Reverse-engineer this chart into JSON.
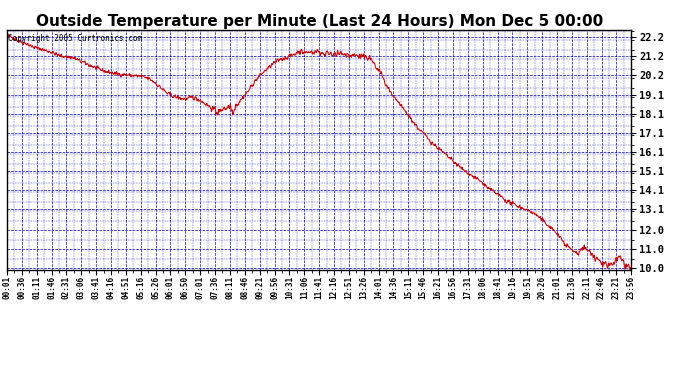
{
  "title": "Outside Temperature per Minute (Last 24 Hours) Mon Dec 5 00:00",
  "copyright": "Copyright 2005 Curtronics.com",
  "ylim": [
    9.9,
    22.55
  ],
  "yticks": [
    10.0,
    11.0,
    12.0,
    13.1,
    14.1,
    15.1,
    16.1,
    17.1,
    18.1,
    19.1,
    20.2,
    21.2,
    22.2
  ],
  "ytick_labels": [
    "10.0",
    "11.0",
    "12.0",
    "13.1",
    "14.1",
    "15.1",
    "16.1",
    "17.1",
    "18.1",
    "19.1",
    "20.2",
    "21.2",
    "22.2"
  ],
  "line_color": "#cc0000",
  "background_color": "#ffffff",
  "grid_color": "#0000bb",
  "title_fontsize": 11,
  "x_tick_labels": [
    "00:01",
    "00:36",
    "01:11",
    "01:46",
    "02:31",
    "03:06",
    "03:41",
    "04:16",
    "04:51",
    "05:16",
    "05:26",
    "06:01",
    "06:50",
    "07:01",
    "07:36",
    "08:11",
    "08:46",
    "09:21",
    "09:56",
    "10:31",
    "11:06",
    "11:41",
    "12:16",
    "12:51",
    "13:26",
    "14:01",
    "14:36",
    "15:11",
    "15:46",
    "16:21",
    "16:56",
    "17:31",
    "18:06",
    "18:41",
    "19:16",
    "19:51",
    "20:26",
    "21:01",
    "21:36",
    "22:11",
    "22:46",
    "23:21",
    "23:56"
  ],
  "n_points": 1440,
  "seed": 42,
  "keypoints": [
    [
      0,
      22.25
    ],
    [
      5,
      22.22
    ],
    [
      15,
      22.15
    ],
    [
      25,
      22.0
    ],
    [
      35,
      21.9
    ],
    [
      45,
      21.85
    ],
    [
      55,
      21.7
    ],
    [
      70,
      21.6
    ],
    [
      85,
      21.5
    ],
    [
      100,
      21.4
    ],
    [
      120,
      21.2
    ],
    [
      135,
      21.15
    ],
    [
      150,
      21.1
    ],
    [
      170,
      20.9
    ],
    [
      190,
      20.7
    ],
    [
      210,
      20.5
    ],
    [
      230,
      20.35
    ],
    [
      250,
      20.25
    ],
    [
      270,
      20.2
    ],
    [
      290,
      20.15
    ],
    [
      310,
      20.1
    ],
    [
      326,
      20.0
    ],
    [
      340,
      19.8
    ],
    [
      355,
      19.5
    ],
    [
      370,
      19.2
    ],
    [
      385,
      19.05
    ],
    [
      400,
      18.95
    ],
    [
      415,
      18.9
    ],
    [
      425,
      19.0
    ],
    [
      435,
      18.95
    ],
    [
      445,
      18.85
    ],
    [
      455,
      18.7
    ],
    [
      465,
      18.55
    ],
    [
      470,
      18.45
    ],
    [
      475,
      18.35
    ],
    [
      480,
      18.3
    ],
    [
      485,
      18.2
    ],
    [
      490,
      18.25
    ],
    [
      495,
      18.3
    ],
    [
      500,
      18.35
    ],
    [
      505,
      18.4
    ],
    [
      510,
      18.5
    ],
    [
      515,
      18.6
    ],
    [
      518,
      18.3
    ],
    [
      521,
      18.15
    ],
    [
      524,
      18.35
    ],
    [
      527,
      18.5
    ],
    [
      530,
      18.6
    ],
    [
      540,
      18.9
    ],
    [
      555,
      19.3
    ],
    [
      570,
      19.8
    ],
    [
      585,
      20.2
    ],
    [
      600,
      20.5
    ],
    [
      615,
      20.8
    ],
    [
      630,
      21.0
    ],
    [
      645,
      21.1
    ],
    [
      655,
      21.2
    ],
    [
      660,
      21.25
    ],
    [
      665,
      21.3
    ],
    [
      670,
      21.35
    ],
    [
      680,
      21.4
    ],
    [
      690,
      21.35
    ],
    [
      700,
      21.4
    ],
    [
      710,
      21.38
    ],
    [
      720,
      21.35
    ],
    [
      730,
      21.3
    ],
    [
      740,
      21.32
    ],
    [
      750,
      21.3
    ],
    [
      760,
      21.28
    ],
    [
      770,
      21.3
    ],
    [
      780,
      21.25
    ],
    [
      790,
      21.2
    ],
    [
      800,
      21.25
    ],
    [
      810,
      21.2
    ],
    [
      820,
      21.15
    ],
    [
      830,
      21.1
    ],
    [
      840,
      21.0
    ],
    [
      845,
      20.8
    ],
    [
      850,
      20.6
    ],
    [
      855,
      20.4
    ],
    [
      858,
      20.5
    ],
    [
      861,
      20.3
    ],
    [
      864,
      20.2
    ],
    [
      867,
      20.0
    ],
    [
      870,
      19.8
    ],
    [
      875,
      19.6
    ],
    [
      880,
      19.4
    ],
    [
      885,
      19.2
    ],
    [
      890,
      19.0
    ],
    [
      900,
      18.8
    ],
    [
      910,
      18.5
    ],
    [
      920,
      18.2
    ],
    [
      930,
      17.9
    ],
    [
      940,
      17.6
    ],
    [
      950,
      17.3
    ],
    [
      960,
      17.1
    ],
    [
      970,
      16.85
    ],
    [
      980,
      16.6
    ],
    [
      990,
      16.4
    ],
    [
      1000,
      16.2
    ],
    [
      1010,
      16.0
    ],
    [
      1020,
      15.8
    ],
    [
      1030,
      15.6
    ],
    [
      1040,
      15.4
    ],
    [
      1050,
      15.2
    ],
    [
      1060,
      15.05
    ],
    [
      1070,
      14.9
    ],
    [
      1080,
      14.75
    ],
    [
      1090,
      14.6
    ],
    [
      1095,
      14.5
    ],
    [
      1100,
      14.4
    ],
    [
      1110,
      14.2
    ],
    [
      1120,
      14.05
    ],
    [
      1130,
      13.9
    ],
    [
      1140,
      13.75
    ],
    [
      1145,
      13.65
    ],
    [
      1150,
      13.55
    ],
    [
      1160,
      13.45
    ],
    [
      1170,
      13.35
    ],
    [
      1180,
      13.25
    ],
    [
      1190,
      13.15
    ],
    [
      1200,
      13.05
    ],
    [
      1210,
      12.95
    ],
    [
      1220,
      12.8
    ],
    [
      1230,
      12.6
    ],
    [
      1240,
      12.4
    ],
    [
      1250,
      12.2
    ],
    [
      1260,
      12.0
    ],
    [
      1265,
      11.9
    ],
    [
      1270,
      11.75
    ],
    [
      1275,
      11.6
    ],
    [
      1280,
      11.45
    ],
    [
      1285,
      11.3
    ],
    [
      1290,
      11.2
    ],
    [
      1295,
      11.1
    ],
    [
      1300,
      11.0
    ],
    [
      1305,
      10.9
    ],
    [
      1310,
      10.8
    ],
    [
      1315,
      10.75
    ],
    [
      1320,
      10.85
    ],
    [
      1325,
      11.0
    ],
    [
      1330,
      11.1
    ],
    [
      1335,
      11.0
    ],
    [
      1340,
      10.9
    ],
    [
      1345,
      10.8
    ],
    [
      1350,
      10.7
    ],
    [
      1355,
      10.6
    ],
    [
      1360,
      10.5
    ],
    [
      1365,
      10.4
    ],
    [
      1370,
      10.3
    ],
    [
      1375,
      10.2
    ],
    [
      1380,
      10.15
    ],
    [
      1385,
      10.05
    ],
    [
      1390,
      10.15
    ],
    [
      1395,
      10.25
    ],
    [
      1400,
      10.35
    ],
    [
      1405,
      10.5
    ],
    [
      1410,
      10.6
    ],
    [
      1415,
      10.5
    ],
    [
      1420,
      10.3
    ],
    [
      1425,
      10.2
    ],
    [
      1430,
      10.1
    ],
    [
      1435,
      10.05
    ],
    [
      1439,
      10.0
    ]
  ]
}
